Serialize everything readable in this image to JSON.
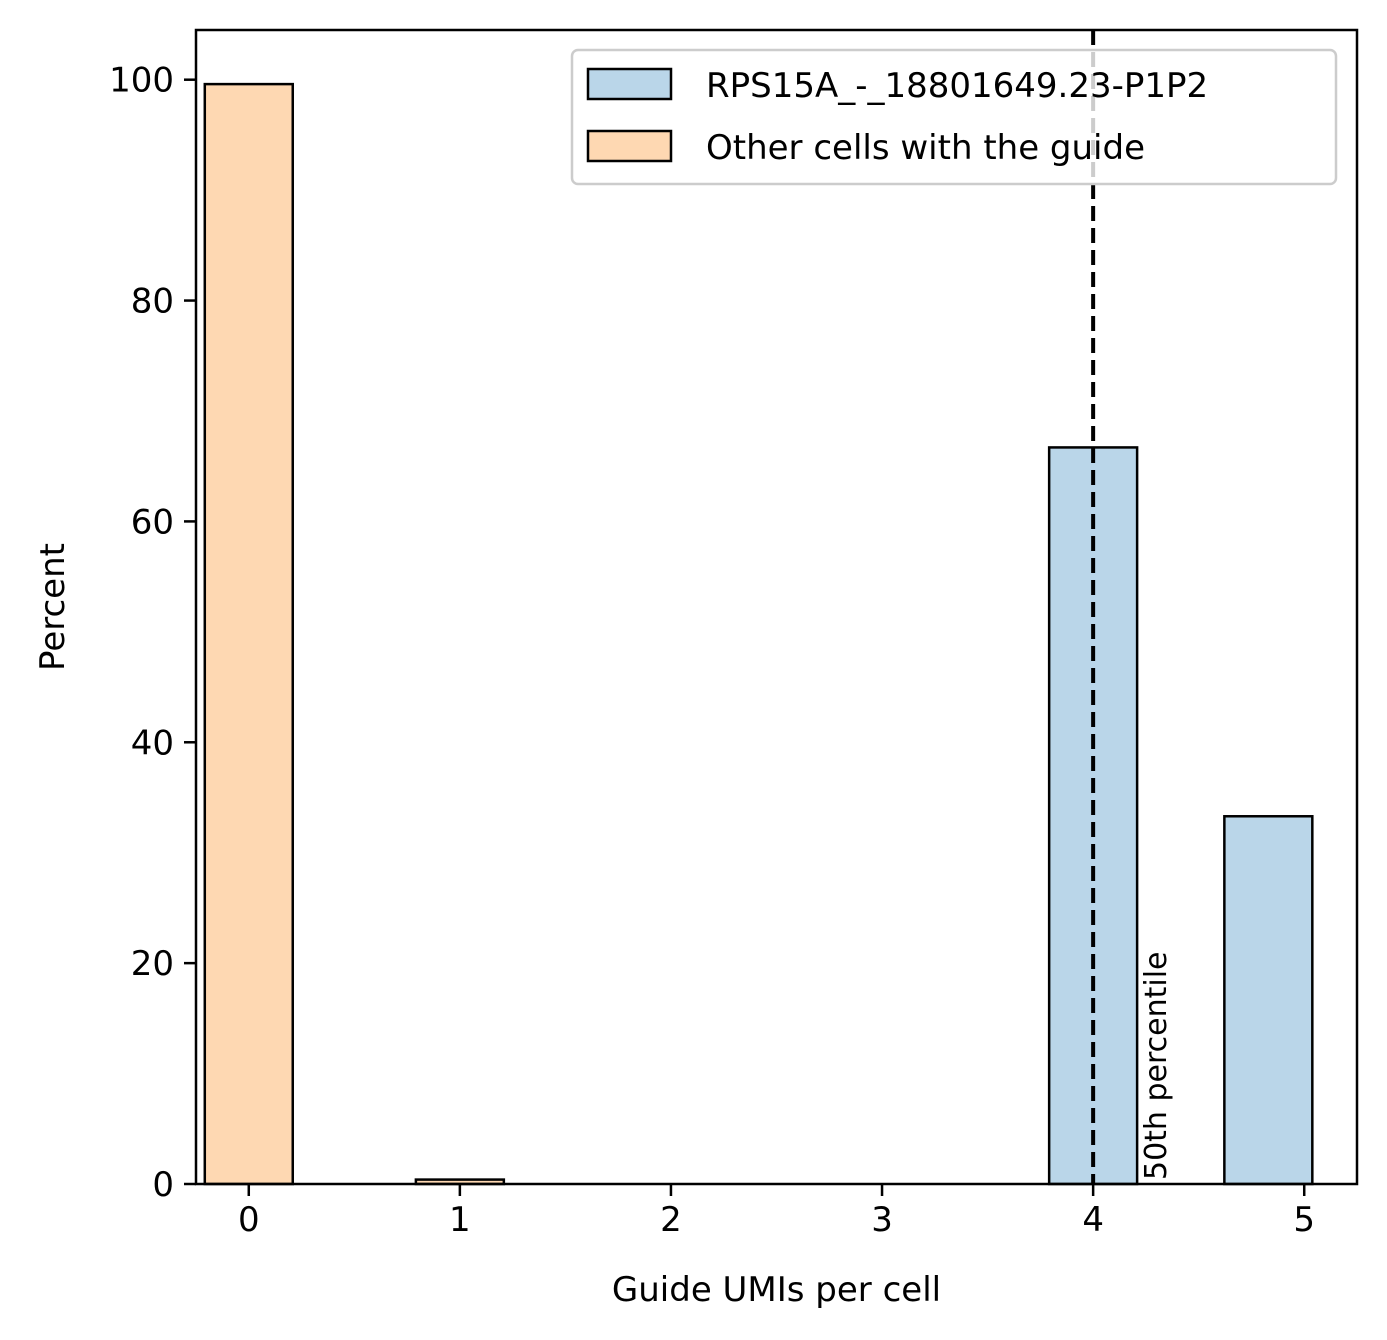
{
  "chart_data": {
    "type": "bar",
    "xlabel": "Guide UMIs per cell",
    "ylabel": "Percent",
    "xlim": [
      -0.25,
      5.25
    ],
    "ylim": [
      0,
      104.5
    ],
    "xticks": [
      0,
      1,
      2,
      3,
      4,
      5
    ],
    "yticks": [
      0,
      20,
      40,
      60,
      80,
      100
    ],
    "grid": false,
    "legend_position": "top-right",
    "bar_width": 0.4167,
    "series": [
      {
        "name": "RPS15A_-_18801649.23-P1P2",
        "color": "#bad6e9",
        "bars": [
          {
            "x": 4.0,
            "value": 66.7
          },
          {
            "x": 4.83,
            "value": 33.3
          }
        ]
      },
      {
        "name": "Other cells with the guide",
        "color": "#fed8b2",
        "bars": [
          {
            "x": 0.0,
            "value": 99.6
          },
          {
            "x": 0.0,
            "value": 0
          },
          {
            "x": 1.0,
            "value": 0.4
          },
          {
            "x": 1.83,
            "value": 0
          },
          {
            "x": 2.67,
            "value": 0
          },
          {
            "x": 3.5,
            "value": 0
          },
          {
            "x": 4.33,
            "value": 0
          },
          {
            "x": 5.17,
            "value": 0
          }
        ]
      }
    ],
    "annotations": [
      {
        "type": "vline",
        "x": 4,
        "style": "dashed",
        "label": "50th percentile"
      }
    ]
  }
}
